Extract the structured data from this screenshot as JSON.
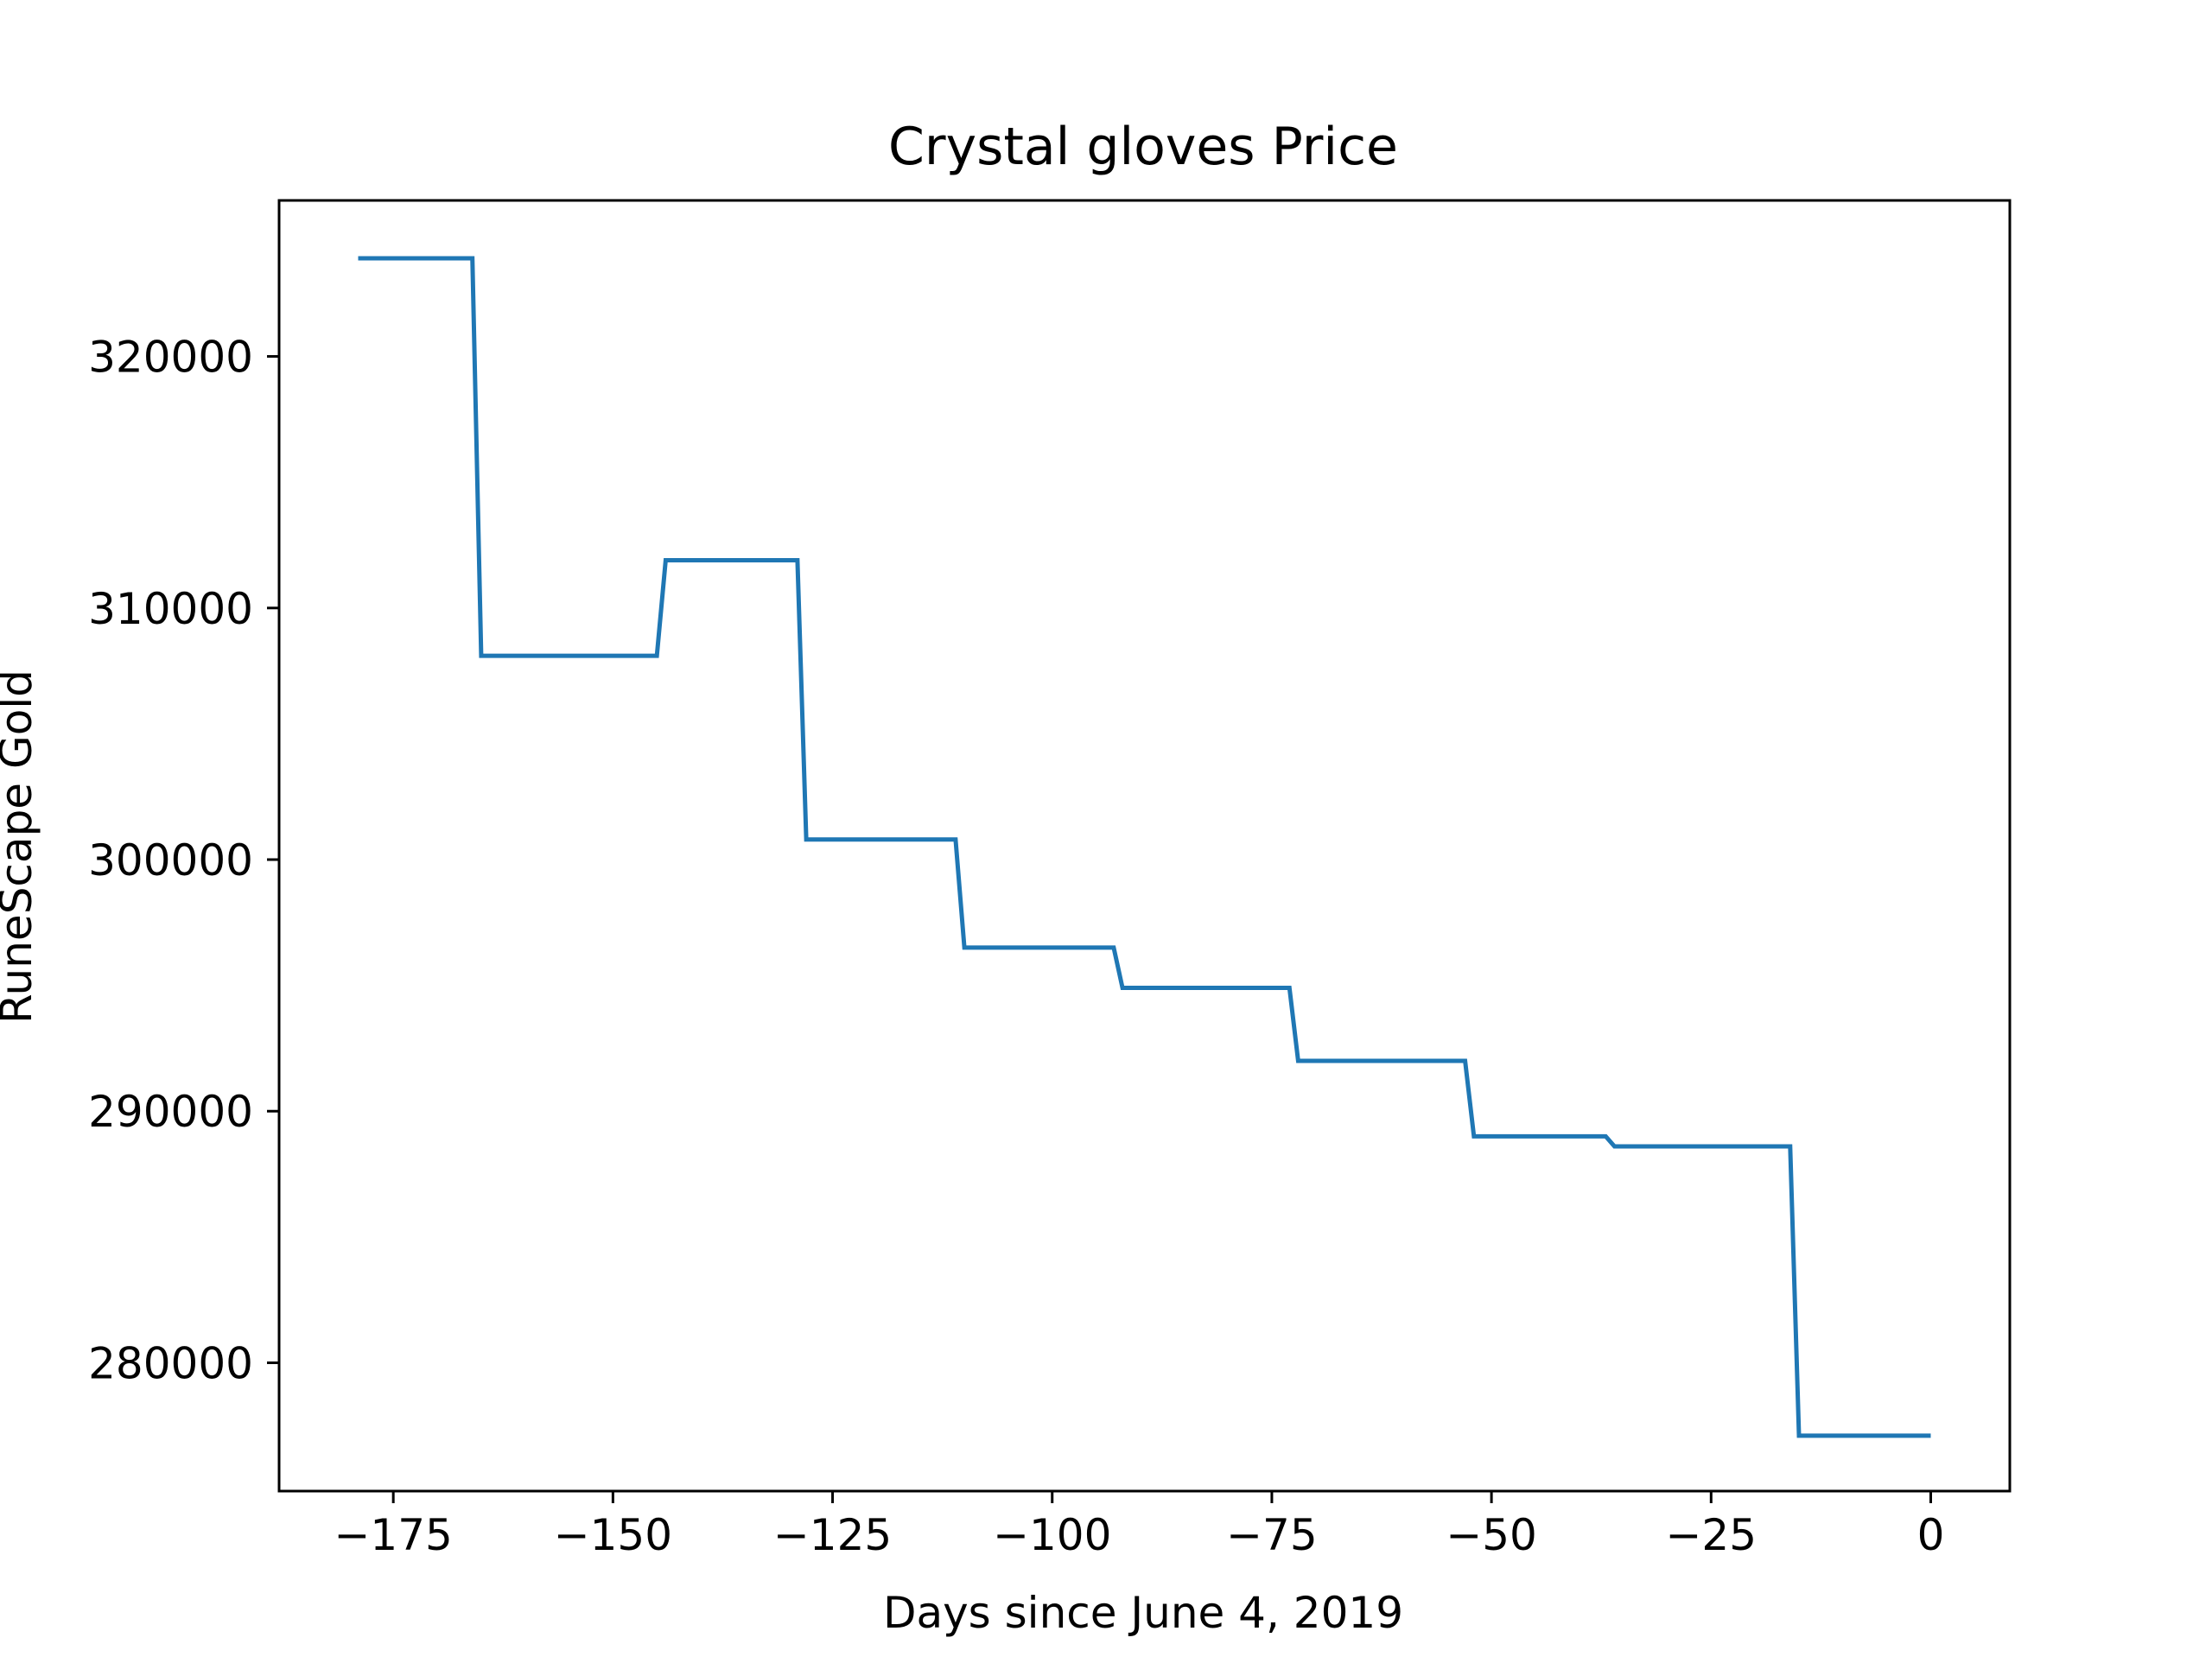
{
  "chart_data": {
    "type": "line",
    "title": "Crystal gloves Price",
    "xlabel": "Days since June 4, 2019",
    "ylabel": "RuneScape Gold",
    "xlim": [
      -188,
      9
    ],
    "ylim": [
      274900,
      326200
    ],
    "grid": false,
    "legend": "none",
    "line_color": "#1f77b4",
    "x_ticks": [
      -175,
      -150,
      -125,
      -100,
      -75,
      -50,
      -25,
      0
    ],
    "x_tick_labels": [
      "−175",
      "−150",
      "−125",
      "−100",
      "−75",
      "−50",
      "−25",
      "0"
    ],
    "y_ticks": [
      280000,
      290000,
      300000,
      310000,
      320000
    ],
    "y_tick_labels": [
      "280000",
      "290000",
      "300000",
      "310000",
      "320000"
    ],
    "series": [
      {
        "x": [
          -179,
          -166,
          -165,
          -145,
          -144,
          -129,
          -128,
          -111,
          -110,
          -93,
          -92,
          -73,
          -72,
          -53,
          -52,
          -37,
          -36,
          -16,
          -15,
          0
        ],
        "y": [
          323900,
          323900,
          308100,
          308100,
          311900,
          311900,
          300800,
          300800,
          296500,
          296500,
          294900,
          294900,
          292000,
          292000,
          289000,
          289000,
          288600,
          288600,
          277100,
          277100
        ]
      }
    ]
  }
}
